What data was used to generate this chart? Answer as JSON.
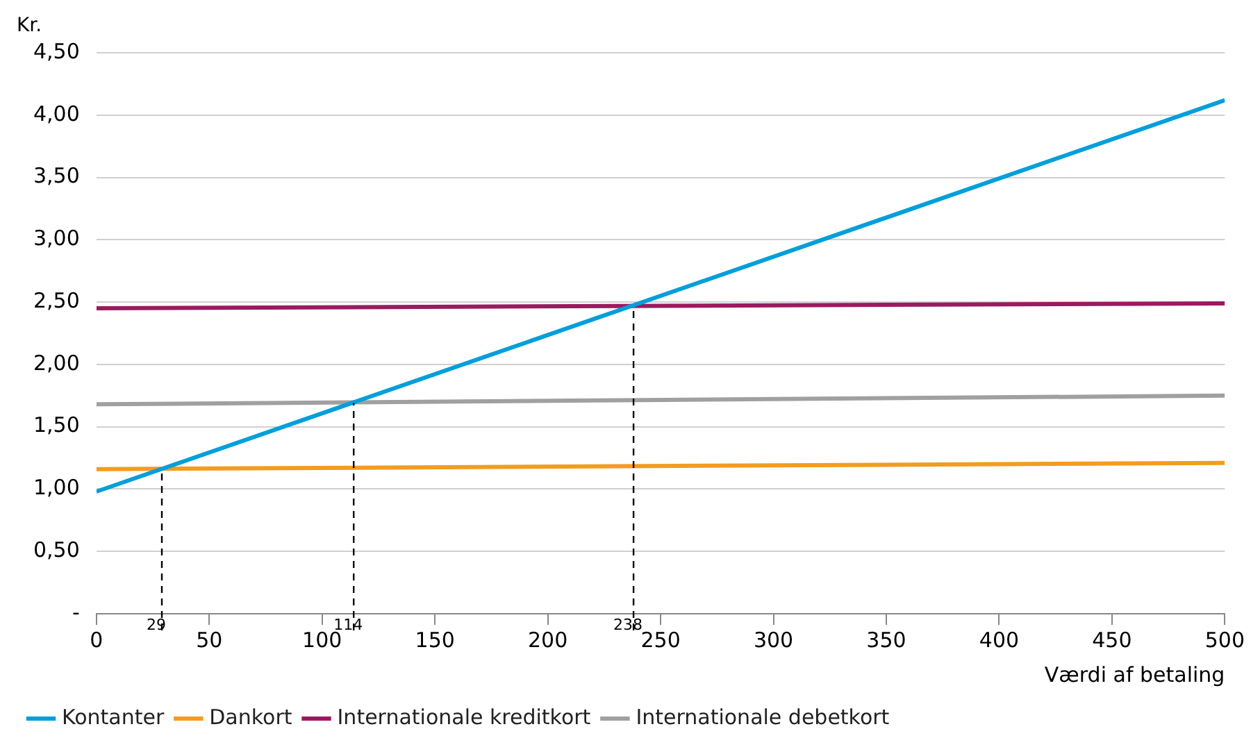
{
  "chart_data": {
    "type": "line",
    "xlabel": "Værdi af betaling",
    "ylabel": "Kr.",
    "x": [
      0,
      500
    ],
    "series": [
      {
        "name": "Kontanter",
        "color": "#009fda",
        "values": [
          0.98,
          4.12
        ]
      },
      {
        "name": "Dankort",
        "color": "#f39c1f",
        "values": [
          1.16,
          1.21
        ]
      },
      {
        "name": "Internationale kreditkort",
        "color": "#9b1a5f",
        "values": [
          2.45,
          2.49
        ]
      },
      {
        "name": "Internationale debetkort",
        "color": "#a0a0a0",
        "values": [
          1.68,
          1.75
        ]
      }
    ],
    "xlim": [
      0,
      500
    ],
    "xticks": [
      0,
      50,
      100,
      150,
      200,
      250,
      300,
      350,
      400,
      450,
      500
    ],
    "ylim": [
      0,
      4.5
    ],
    "yticks": [
      {
        "value": 0,
        "label": "-"
      },
      {
        "value": 0.5,
        "label": "0,50"
      },
      {
        "value": 1,
        "label": "1,00"
      },
      {
        "value": 1.5,
        "label": "1,50"
      },
      {
        "value": 2,
        "label": "2,00"
      },
      {
        "value": 2.5,
        "label": "2,50"
      },
      {
        "value": 3,
        "label": "3,00"
      },
      {
        "value": 3.5,
        "label": "3,50"
      },
      {
        "value": 4,
        "label": "4,00"
      },
      {
        "value": 4.5,
        "label": "4,50"
      }
    ],
    "annotations": [
      {
        "text": "29",
        "x": 29,
        "y": 1.16
      },
      {
        "text": "114",
        "x": 114,
        "y": 1.69
      },
      {
        "text": "238",
        "x": 238,
        "y": 2.47
      }
    ],
    "grid": "y",
    "legend": "bottom",
    "marker": "none",
    "line_style": "solid"
  }
}
